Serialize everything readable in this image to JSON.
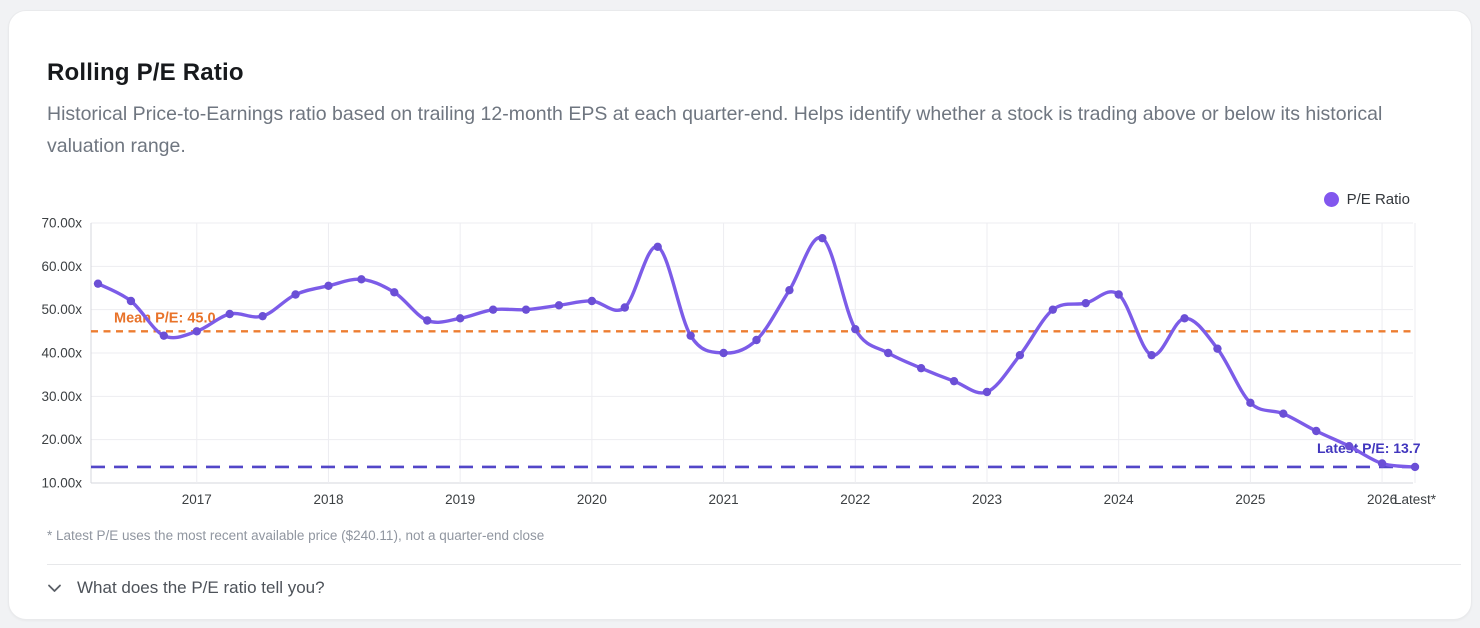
{
  "card": {
    "title": "Rolling P/E Ratio",
    "subtitle": "Historical Price-to-Earnings ratio based on trailing 12-month EPS at each quarter-end. Helps identify whether a stock is trading above or below its historical valuation range.",
    "footnote": "* Latest P/E uses the most recent available price ($240.11), not a quarter-end close",
    "expander_question": "What does the P/E ratio tell you?"
  },
  "legend": {
    "label": "P/E Ratio",
    "dot_color": "#8257ee",
    "position": "top-right"
  },
  "colors": {
    "line": "#7c5ce8",
    "marker": "#6b4fd6",
    "mean_line": "#ed7d31",
    "mean_text": "#e8732a",
    "latest_line": "#5246c8",
    "latest_text": "#4136be",
    "grid": "#ededf1",
    "axis": "#d6d7dc",
    "tick_text": "#3c4043"
  },
  "chart_data": {
    "type": "line",
    "title": "Rolling P/E Ratio",
    "xlabel": "",
    "ylabel": "",
    "ylim": [
      10,
      70
    ],
    "grid": true,
    "legend_position": "top-right",
    "y_ticks": [
      {
        "v": 10,
        "label": "10.00x"
      },
      {
        "v": 20,
        "label": "20.00x"
      },
      {
        "v": 30,
        "label": "30.00x"
      },
      {
        "v": 40,
        "label": "40.00x"
      },
      {
        "v": 50,
        "label": "50.00x"
      },
      {
        "v": 60,
        "label": "60.00x"
      },
      {
        "v": 70,
        "label": "70.00x"
      }
    ],
    "x_ticks": [
      {
        "label": "2017",
        "period": "2017Q1"
      },
      {
        "label": "2018",
        "period": "2018Q1"
      },
      {
        "label": "2019",
        "period": "2019Q1"
      },
      {
        "label": "2020",
        "period": "2020Q1"
      },
      {
        "label": "2021",
        "period": "2021Q1"
      },
      {
        "label": "2022",
        "period": "2022Q1"
      },
      {
        "label": "2023",
        "period": "2023Q1"
      },
      {
        "label": "2024",
        "period": "2024Q1"
      },
      {
        "label": "2025",
        "period": "2025Q1"
      },
      {
        "label": "2026",
        "period": "2026Q1"
      },
      {
        "label": "Latest*",
        "period": "Latest"
      }
    ],
    "mean_pe": 45.0,
    "mean_label": "Mean P/E: 45.0",
    "latest_pe": 13.7,
    "latest_label": "Latest P/E: 13.7",
    "series": [
      {
        "name": "P/E Ratio",
        "points": [
          {
            "period": "2016Q2",
            "value": 56
          },
          {
            "period": "2016Q3",
            "value": 52
          },
          {
            "period": "2016Q4",
            "value": 44
          },
          {
            "period": "2017Q1",
            "value": 45
          },
          {
            "period": "2017Q2",
            "value": 49
          },
          {
            "period": "2017Q3",
            "value": 48.5
          },
          {
            "period": "2017Q4",
            "value": 53.5
          },
          {
            "period": "2018Q1",
            "value": 55.5
          },
          {
            "period": "2018Q2",
            "value": 57
          },
          {
            "period": "2018Q3",
            "value": 54
          },
          {
            "period": "2018Q4",
            "value": 47.5
          },
          {
            "period": "2019Q1",
            "value": 48
          },
          {
            "period": "2019Q2",
            "value": 50
          },
          {
            "period": "2019Q3",
            "value": 50
          },
          {
            "period": "2019Q4",
            "value": 51
          },
          {
            "period": "2020Q1",
            "value": 52
          },
          {
            "period": "2020Q2",
            "value": 50.5
          },
          {
            "period": "2020Q3",
            "value": 64.5
          },
          {
            "period": "2020Q4",
            "value": 44
          },
          {
            "period": "2021Q1",
            "value": 40
          },
          {
            "period": "2021Q2",
            "value": 43
          },
          {
            "period": "2021Q3",
            "value": 54.5
          },
          {
            "period": "2021Q4",
            "value": 66.5
          },
          {
            "period": "2022Q1",
            "value": 45.5
          },
          {
            "period": "2022Q2",
            "value": 40
          },
          {
            "period": "2022Q3",
            "value": 36.5
          },
          {
            "period": "2022Q4",
            "value": 33.5
          },
          {
            "period": "2023Q1",
            "value": 31
          },
          {
            "period": "2023Q2",
            "value": 39.5
          },
          {
            "period": "2023Q3",
            "value": 50
          },
          {
            "period": "2023Q4",
            "value": 51.5
          },
          {
            "period": "2024Q1",
            "value": 53.5
          },
          {
            "period": "2024Q2",
            "value": 39.5
          },
          {
            "period": "2024Q3",
            "value": 48
          },
          {
            "period": "2024Q4",
            "value": 41
          },
          {
            "period": "2025Q1",
            "value": 28.5
          },
          {
            "period": "2025Q2",
            "value": 26
          },
          {
            "period": "2025Q3",
            "value": 22
          },
          {
            "period": "2025Q4",
            "value": 18.5
          },
          {
            "period": "2026Q1",
            "value": 14.5
          },
          {
            "period": "Latest",
            "value": 13.7
          }
        ]
      }
    ]
  }
}
